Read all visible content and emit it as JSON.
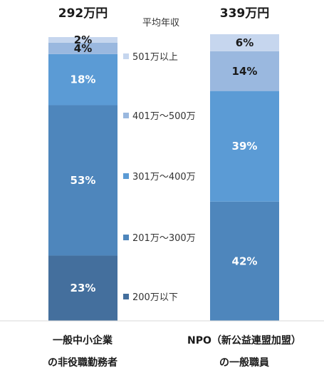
{
  "chart_data": {
    "type": "bar",
    "stacked": true,
    "orientation": "vertical",
    "title": "平均年収",
    "legend_position": "center",
    "categories": [
      [
        "一般中小企業",
        "の非役職勤務者"
      ],
      [
        "NPO（新公益連盟加盟）",
        "の一般職員"
      ]
    ],
    "totals": [
      "292万円",
      "339万円"
    ],
    "series": [
      {
        "name": "200万以下",
        "color": "#446f9d",
        "values": [
          23,
          0
        ]
      },
      {
        "name": "201万～300万",
        "color": "#4e86bc",
        "values": [
          53,
          42
        ]
      },
      {
        "name": "301万～400万",
        "color": "#5b9bd5",
        "values": [
          18,
          39
        ]
      },
      {
        "name": "401万～500万",
        "color": "#9ab8df",
        "values": [
          4,
          14
        ]
      },
      {
        "name": "501万以上",
        "color": "#c6d6ee",
        "values": [
          2,
          6
        ]
      }
    ],
    "value_suffix": "%",
    "ylim": [
      0,
      100
    ],
    "grid": false
  }
}
